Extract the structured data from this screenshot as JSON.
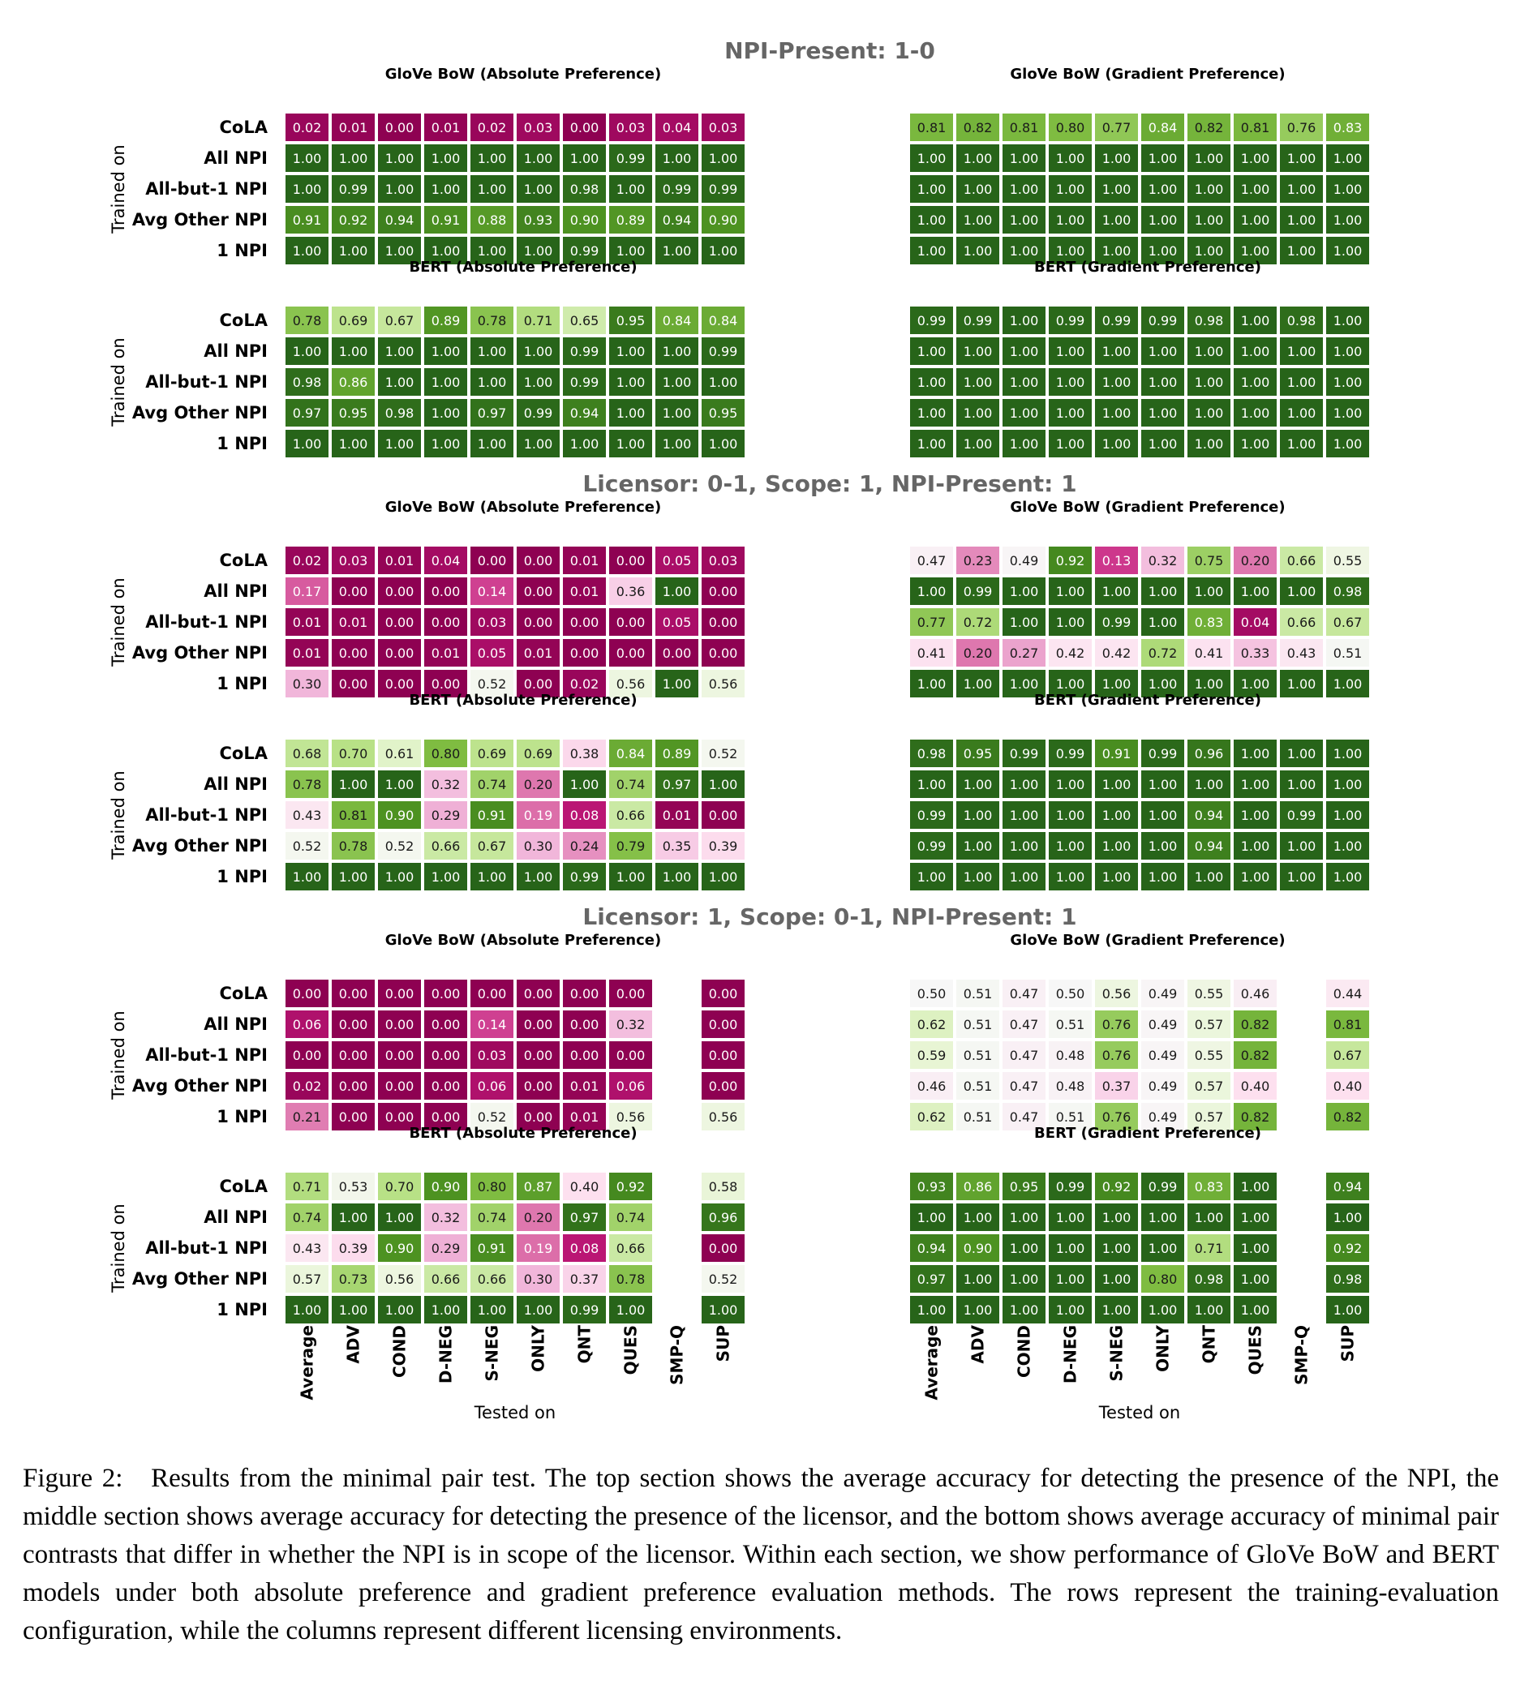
{
  "rows": [
    "CoLA",
    "All NPI",
    "All-but-1 NPI",
    "Avg Other NPI",
    "1 NPI"
  ],
  "cols": [
    "Average",
    "ADV",
    "COND",
    "D-NEG",
    "S-NEG",
    "ONLY",
    "QNT",
    "QUES",
    "SMP-Q",
    "SUP"
  ],
  "y_label": "Trained on",
  "x_label": "Tested on",
  "colors": {
    "neg": "#8e0152",
    "mid": "#f7f7f7",
    "pos": "#276419",
    "text_dark": "#1a1a1a",
    "text_light": "#ffffff",
    "title_gray": "#666666"
  },
  "caption": {
    "label": "Figure 2:",
    "text": "Results from the minimal pair test. The top section shows the average accuracy for detecting the presence of the NPI, the middle section shows average accuracy for detecting the presence of the licensor, and the bottom shows average accuracy of minimal pair contrasts that differ in whether the NPI is in scope of the licensor. Within each section, we show performance of GloVe BoW and BERT models under both absolute preference and gradient preference evaluation methods. The rows represent the training-evaluation configuration, while the columns represent different licensing environments."
  },
  "chart_data": [
    {
      "type": "heatmap",
      "title": "NPI-Present: 1-0",
      "panels": [
        {
          "title": "GloVe BoW (Absolute Preference)",
          "values": [
            [
              0.02,
              0.01,
              0.0,
              0.01,
              0.02,
              0.03,
              0.0,
              0.03,
              0.04,
              0.03
            ],
            [
              1.0,
              1.0,
              1.0,
              1.0,
              1.0,
              1.0,
              1.0,
              0.99,
              1.0,
              1.0
            ],
            [
              1.0,
              0.99,
              1.0,
              1.0,
              1.0,
              1.0,
              0.98,
              1.0,
              0.99,
              0.99
            ],
            [
              0.91,
              0.92,
              0.94,
              0.91,
              0.88,
              0.93,
              0.9,
              0.89,
              0.94,
              0.9
            ],
            [
              1.0,
              1.0,
              1.0,
              1.0,
              1.0,
              1.0,
              0.99,
              1.0,
              1.0,
              1.0
            ]
          ]
        },
        {
          "title": "GloVe BoW (Gradient Preference)",
          "values": [
            [
              0.81,
              0.82,
              0.81,
              0.8,
              0.77,
              0.84,
              0.82,
              0.81,
              0.76,
              0.83
            ],
            [
              1.0,
              1.0,
              1.0,
              1.0,
              1.0,
              1.0,
              1.0,
              1.0,
              1.0,
              1.0
            ],
            [
              1.0,
              1.0,
              1.0,
              1.0,
              1.0,
              1.0,
              1.0,
              1.0,
              1.0,
              1.0
            ],
            [
              1.0,
              1.0,
              1.0,
              1.0,
              1.0,
              1.0,
              1.0,
              1.0,
              1.0,
              1.0
            ],
            [
              1.0,
              1.0,
              1.0,
              1.0,
              1.0,
              1.0,
              1.0,
              1.0,
              1.0,
              1.0
            ]
          ]
        },
        {
          "title": "BERT (Absolute Preference)",
          "values": [
            [
              0.78,
              0.69,
              0.67,
              0.89,
              0.78,
              0.71,
              0.65,
              0.95,
              0.84,
              0.84
            ],
            [
              1.0,
              1.0,
              1.0,
              1.0,
              1.0,
              1.0,
              0.99,
              1.0,
              1.0,
              0.99
            ],
            [
              0.98,
              0.86,
              1.0,
              1.0,
              1.0,
              1.0,
              0.99,
              1.0,
              1.0,
              1.0
            ],
            [
              0.97,
              0.95,
              0.98,
              1.0,
              0.97,
              0.99,
              0.94,
              1.0,
              1.0,
              0.95
            ],
            [
              1.0,
              1.0,
              1.0,
              1.0,
              1.0,
              1.0,
              1.0,
              1.0,
              1.0,
              1.0
            ]
          ]
        },
        {
          "title": "BERT (Gradient Preference)",
          "values": [
            [
              0.99,
              0.99,
              1.0,
              0.99,
              0.99,
              0.99,
              0.98,
              1.0,
              0.98,
              1.0
            ],
            [
              1.0,
              1.0,
              1.0,
              1.0,
              1.0,
              1.0,
              1.0,
              1.0,
              1.0,
              1.0
            ],
            [
              1.0,
              1.0,
              1.0,
              1.0,
              1.0,
              1.0,
              1.0,
              1.0,
              1.0,
              1.0
            ],
            [
              1.0,
              1.0,
              1.0,
              1.0,
              1.0,
              1.0,
              1.0,
              1.0,
              1.0,
              1.0
            ],
            [
              1.0,
              1.0,
              1.0,
              1.0,
              1.0,
              1.0,
              1.0,
              1.0,
              1.0,
              1.0
            ]
          ]
        }
      ]
    },
    {
      "type": "heatmap",
      "title": "Licensor: 0-1, Scope: 1, NPI-Present: 1",
      "panels": [
        {
          "title": "GloVe BoW (Absolute Preference)",
          "values": [
            [
              0.02,
              0.03,
              0.01,
              0.04,
              0.0,
              0.0,
              0.01,
              0.0,
              0.05,
              0.03
            ],
            [
              0.17,
              0.0,
              0.0,
              0.0,
              0.14,
              0.0,
              0.01,
              0.36,
              1.0,
              0.0
            ],
            [
              0.01,
              0.01,
              0.0,
              0.0,
              0.03,
              0.0,
              0.0,
              0.0,
              0.05,
              0.0
            ],
            [
              0.01,
              0.0,
              0.0,
              0.01,
              0.05,
              0.01,
              0.0,
              0.0,
              0.0,
              0.0
            ],
            [
              0.3,
              0.0,
              0.0,
              0.0,
              0.52,
              0.0,
              0.02,
              0.56,
              1.0,
              0.56
            ]
          ]
        },
        {
          "title": "GloVe BoW (Gradient Preference)",
          "values": [
            [
              0.47,
              0.23,
              0.49,
              0.92,
              0.13,
              0.32,
              0.75,
              0.2,
              0.66,
              0.55
            ],
            [
              1.0,
              0.99,
              1.0,
              1.0,
              1.0,
              1.0,
              1.0,
              1.0,
              1.0,
              0.98
            ],
            [
              0.77,
              0.72,
              1.0,
              1.0,
              0.99,
              1.0,
              0.83,
              0.04,
              0.66,
              0.67
            ],
            [
              0.41,
              0.2,
              0.27,
              0.42,
              0.42,
              0.72,
              0.41,
              0.33,
              0.43,
              0.51
            ],
            [
              1.0,
              1.0,
              1.0,
              1.0,
              1.0,
              1.0,
              1.0,
              1.0,
              1.0,
              1.0
            ]
          ]
        },
        {
          "title": "BERT (Absolute Preference)",
          "values": [
            [
              0.68,
              0.7,
              0.61,
              0.8,
              0.69,
              0.69,
              0.38,
              0.84,
              0.89,
              0.52
            ],
            [
              0.78,
              1.0,
              1.0,
              0.32,
              0.74,
              0.2,
              1.0,
              0.74,
              0.97,
              1.0
            ],
            [
              0.43,
              0.81,
              0.9,
              0.29,
              0.91,
              0.19,
              0.08,
              0.66,
              0.01,
              0.0
            ],
            [
              0.52,
              0.78,
              0.52,
              0.66,
              0.67,
              0.3,
              0.24,
              0.79,
              0.35,
              0.39
            ],
            [
              1.0,
              1.0,
              1.0,
              1.0,
              1.0,
              1.0,
              0.99,
              1.0,
              1.0,
              1.0
            ]
          ]
        },
        {
          "title": "BERT (Gradient Preference)",
          "values": [
            [
              0.98,
              0.95,
              0.99,
              0.99,
              0.91,
              0.99,
              0.96,
              1.0,
              1.0,
              1.0
            ],
            [
              1.0,
              1.0,
              1.0,
              1.0,
              1.0,
              1.0,
              1.0,
              1.0,
              1.0,
              1.0
            ],
            [
              0.99,
              1.0,
              1.0,
              1.0,
              1.0,
              1.0,
              0.94,
              1.0,
              0.99,
              1.0
            ],
            [
              0.99,
              1.0,
              1.0,
              1.0,
              1.0,
              1.0,
              0.94,
              1.0,
              1.0,
              1.0
            ],
            [
              1.0,
              1.0,
              1.0,
              1.0,
              1.0,
              1.0,
              1.0,
              1.0,
              1.0,
              1.0
            ]
          ]
        }
      ]
    },
    {
      "type": "heatmap",
      "title": "Licensor: 1, Scope: 0-1, NPI-Present: 1",
      "panels": [
        {
          "title": "GloVe BoW (Absolute Preference)",
          "values": [
            [
              0.0,
              0.0,
              0.0,
              0.0,
              0.0,
              0.0,
              0.0,
              0.0,
              null,
              0.0
            ],
            [
              0.06,
              0.0,
              0.0,
              0.0,
              0.14,
              0.0,
              0.0,
              0.32,
              null,
              0.0
            ],
            [
              0.0,
              0.0,
              0.0,
              0.0,
              0.03,
              0.0,
              0.0,
              0.0,
              null,
              0.0
            ],
            [
              0.02,
              0.0,
              0.0,
              0.0,
              0.06,
              0.0,
              0.01,
              0.06,
              null,
              0.0
            ],
            [
              0.21,
              0.0,
              0.0,
              0.0,
              0.52,
              0.0,
              0.01,
              0.56,
              null,
              0.56
            ]
          ]
        },
        {
          "title": "GloVe BoW (Gradient Preference)",
          "values": [
            [
              0.5,
              0.51,
              0.47,
              0.5,
              0.56,
              0.49,
              0.55,
              0.46,
              null,
              0.44
            ],
            [
              0.62,
              0.51,
              0.47,
              0.51,
              0.76,
              0.49,
              0.57,
              0.82,
              null,
              0.81
            ],
            [
              0.59,
              0.51,
              0.47,
              0.48,
              0.76,
              0.49,
              0.55,
              0.82,
              null,
              0.67
            ],
            [
              0.46,
              0.51,
              0.47,
              0.48,
              0.37,
              0.49,
              0.57,
              0.4,
              null,
              0.4
            ],
            [
              0.62,
              0.51,
              0.47,
              0.51,
              0.76,
              0.49,
              0.57,
              0.82,
              null,
              0.82
            ]
          ]
        },
        {
          "title": "BERT (Absolute Preference)",
          "values": [
            [
              0.71,
              0.53,
              0.7,
              0.9,
              0.8,
              0.87,
              0.4,
              0.92,
              null,
              0.58
            ],
            [
              0.74,
              1.0,
              1.0,
              0.32,
              0.74,
              0.2,
              0.97,
              0.74,
              null,
              0.96
            ],
            [
              0.43,
              0.39,
              0.9,
              0.29,
              0.91,
              0.19,
              0.08,
              0.66,
              null,
              0.0
            ],
            [
              0.57,
              0.73,
              0.56,
              0.66,
              0.66,
              0.3,
              0.37,
              0.78,
              null,
              0.52
            ],
            [
              1.0,
              1.0,
              1.0,
              1.0,
              1.0,
              1.0,
              0.99,
              1.0,
              null,
              1.0
            ]
          ]
        },
        {
          "title": "BERT (Gradient Preference)",
          "values": [
            [
              0.93,
              0.86,
              0.95,
              0.99,
              0.92,
              0.99,
              0.83,
              1.0,
              null,
              0.94
            ],
            [
              1.0,
              1.0,
              1.0,
              1.0,
              1.0,
              1.0,
              1.0,
              1.0,
              null,
              1.0
            ],
            [
              0.94,
              0.9,
              1.0,
              1.0,
              1.0,
              1.0,
              0.71,
              1.0,
              null,
              0.92
            ],
            [
              0.97,
              1.0,
              1.0,
              1.0,
              1.0,
              0.8,
              0.98,
              1.0,
              null,
              0.98
            ],
            [
              1.0,
              1.0,
              1.0,
              1.0,
              1.0,
              1.0,
              1.0,
              1.0,
              null,
              1.0
            ]
          ]
        }
      ]
    }
  ]
}
